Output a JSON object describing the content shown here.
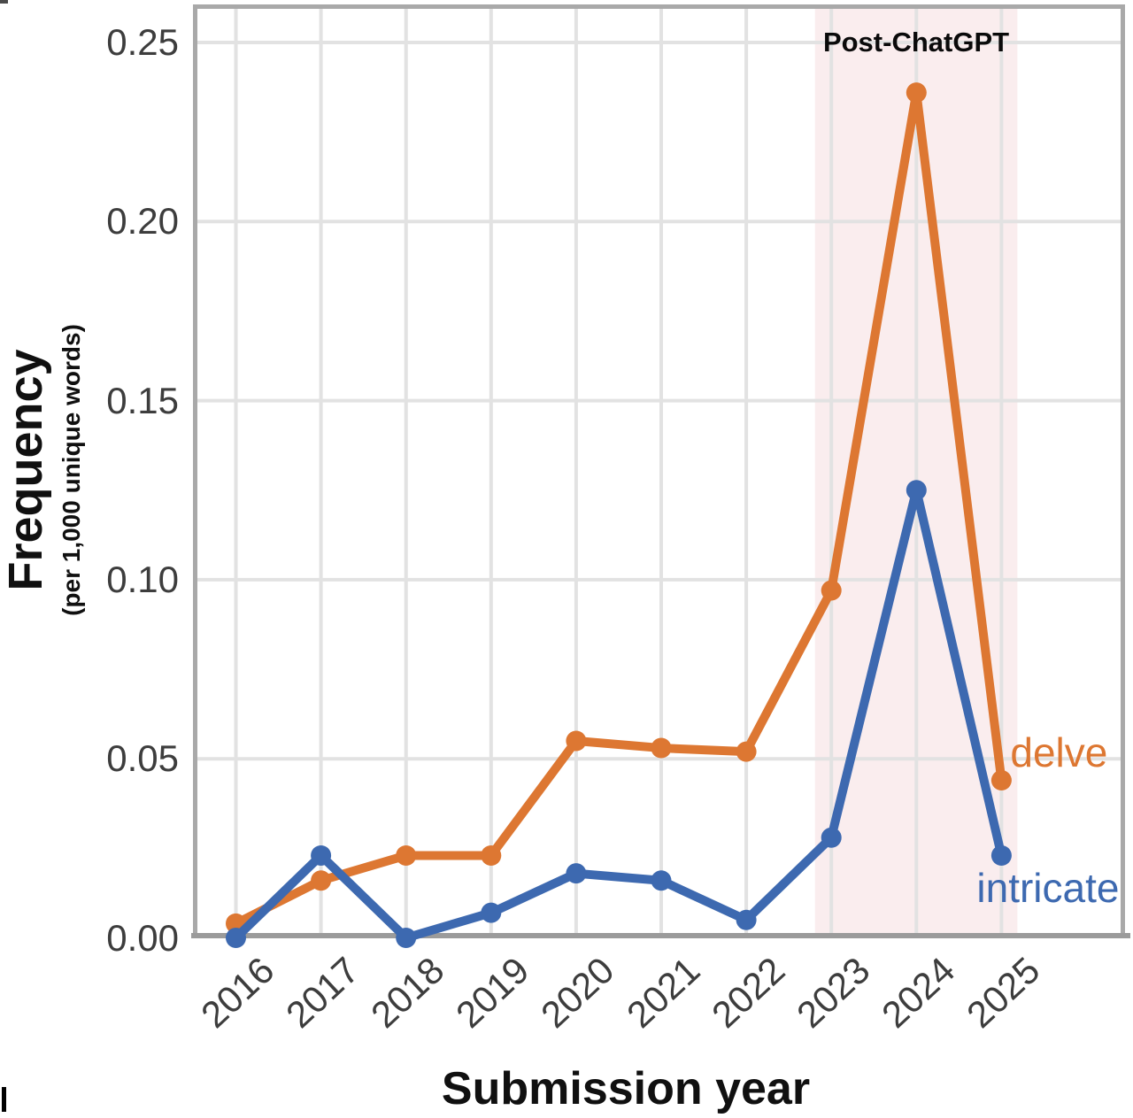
{
  "chart_data": {
    "type": "line",
    "title": "",
    "xlabel": "Submission year",
    "ylabel": "Frequency",
    "ylabel_sub": "(per 1,000 unique words)",
    "categories": [
      "2016",
      "2017",
      "2018",
      "2019",
      "2020",
      "2021",
      "2022",
      "2023",
      "2024",
      "2025"
    ],
    "y_ticks": [
      "0.00",
      "0.05",
      "0.10",
      "0.15",
      "0.20",
      "0.25"
    ],
    "ylim": [
      0,
      0.26
    ],
    "grid": true,
    "legend_position": "end-of-line-labels",
    "series": [
      {
        "name": "delve",
        "color": "#dd7732",
        "values": [
          0.004,
          0.016,
          0.023,
          0.023,
          0.055,
          0.053,
          0.052,
          0.097,
          0.236,
          0.044
        ]
      },
      {
        "name": "intricate",
        "color": "#3d69b0",
        "values": [
          0.0,
          0.023,
          0.0,
          0.007,
          0.018,
          0.016,
          0.005,
          0.028,
          0.125,
          0.023
        ]
      }
    ],
    "annotation": {
      "label": "Post-ChatGPT",
      "band_years": [
        "2023",
        "2024",
        "2025"
      ],
      "band_color": "#faedee"
    },
    "style_colors": {
      "gridline": "#e2e2e2",
      "frame": "#a9a9a9",
      "axis_line": "#9b9b9b",
      "tick_label": "#3d3d3d"
    }
  }
}
